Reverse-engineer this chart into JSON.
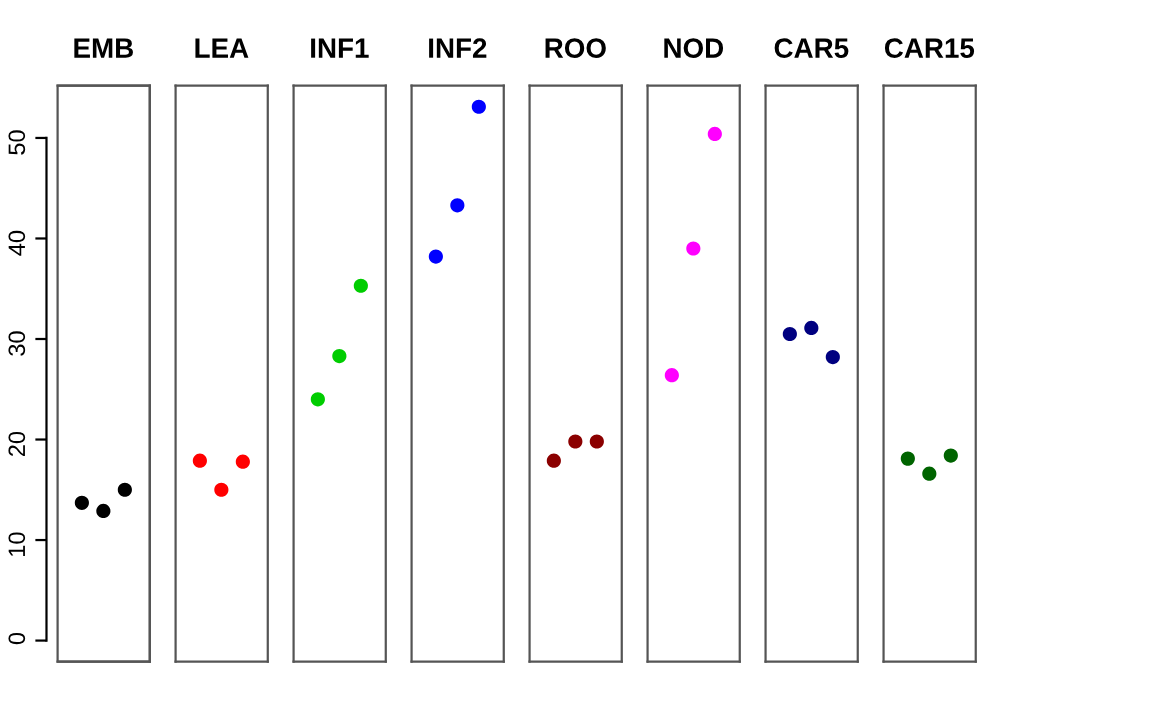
{
  "chart_data": {
    "type": "scatter",
    "categories": [
      "EMB",
      "LEA",
      "INF1",
      "INF2",
      "ROO",
      "NOD",
      "CAR5",
      "CAR15"
    ],
    "ylim": [
      -2.1,
      55.2
    ],
    "yticks": [
      0,
      10,
      20,
      30,
      40,
      50
    ],
    "marker": "circle",
    "series": [
      {
        "values": [
          13.7,
          17.9,
          24.0,
          38.2,
          17.9,
          26.4,
          30.5,
          18.1
        ],
        "colors": [
          "#000000",
          "#ff0000",
          "#00cd00",
          "#0000ff",
          "#8b0000",
          "#ff00ff",
          "#000080",
          "#006400"
        ]
      },
      {
        "values": [
          12.9,
          15.0,
          28.3,
          43.3,
          19.8,
          39.0,
          31.1,
          16.6
        ],
        "colors": [
          "#000000",
          "#ff0000",
          "#00cd00",
          "#0000ff",
          "#8b0000",
          "#ff00ff",
          "#000080",
          "#006400"
        ]
      },
      {
        "values": [
          15.0,
          17.8,
          35.3,
          53.1,
          19.8,
          50.4,
          28.2,
          18.4
        ],
        "colors": [
          "#000000",
          "#ff0000",
          "#00cd00",
          "#0000ff",
          "#8b0000",
          "#ff00ff",
          "#000080",
          "#006400"
        ]
      }
    ]
  }
}
